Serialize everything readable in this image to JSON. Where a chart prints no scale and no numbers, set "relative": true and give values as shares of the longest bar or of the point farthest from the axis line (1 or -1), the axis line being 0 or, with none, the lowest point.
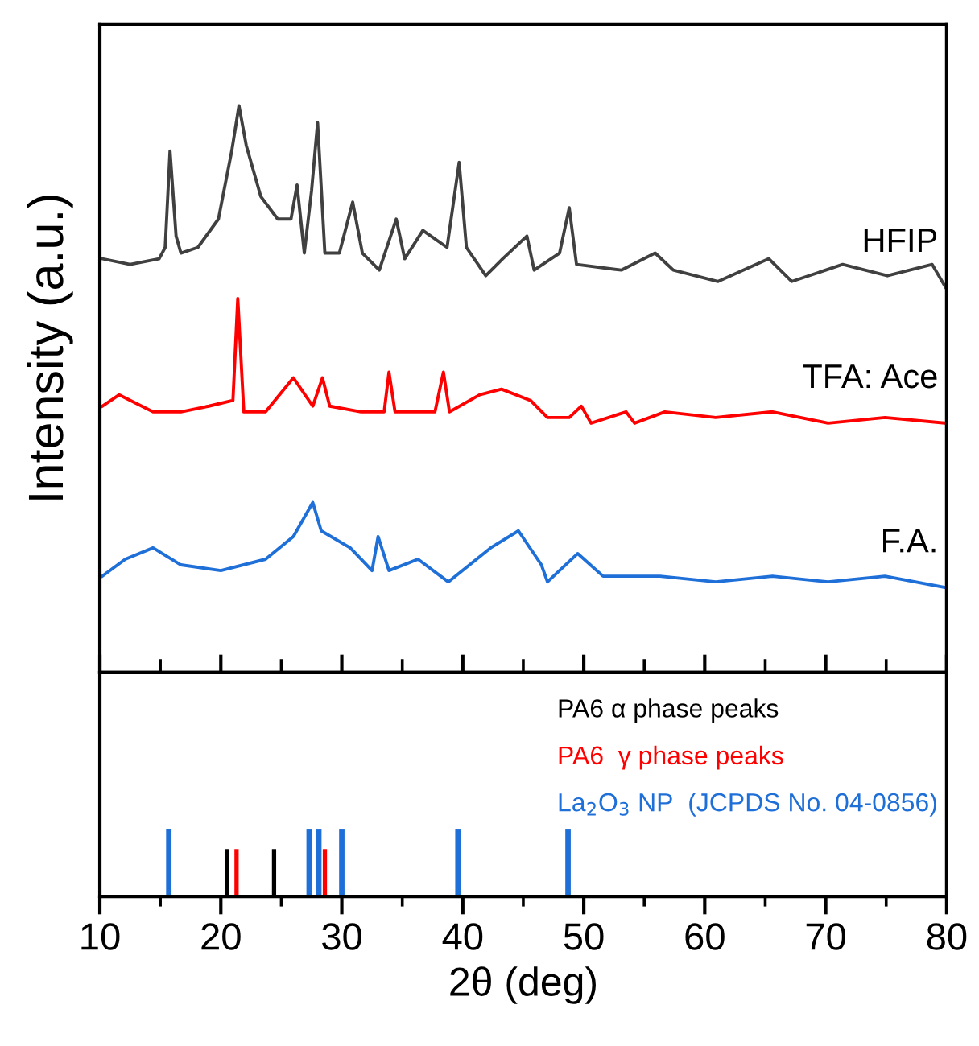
{
  "chart_data": [
    {
      "type": "line",
      "relative": true,
      "ylabel": "Intensity (a.u.)",
      "xlim": [
        10,
        80
      ],
      "xticks": [
        10,
        {
          "value": 15,
          "label": null
        },
        20,
        {
          "value": 25,
          "label": null
        },
        30,
        {
          "value": 35,
          "label": null
        },
        40,
        {
          "value": 45,
          "label": null
        },
        50,
        {
          "value": 55,
          "label": null
        },
        60,
        {
          "value": 65,
          "label": null
        },
        70,
        {
          "value": 75,
          "label": null
        },
        80
      ],
      "tick_labels": false,
      "series": [
        {
          "name": "HFIP",
          "color": "#404040",
          "x": [
            10.2,
            12.5,
            14.9,
            15.4,
            15.8,
            16.3,
            16.7,
            18.1,
            19.8,
            20.9,
            21.5,
            22.1,
            23.3,
            24.7,
            25.8,
            26.3,
            26.9,
            27.5,
            28.0,
            28.6,
            29.8,
            30.9,
            31.7,
            33.1,
            34.5,
            35.2,
            36.7,
            38.7,
            39.7,
            40.3,
            41.9,
            43.3,
            45.3,
            45.9,
            48.0,
            48.8,
            49.4,
            53.1,
            55.9,
            57.4,
            61.1,
            65.3,
            67.2,
            71.4,
            75.1,
            78.8,
            79.9
          ],
          "values": [
            0.73,
            0.72,
            0.73,
            0.75,
            0.92,
            0.77,
            0.74,
            0.75,
            0.8,
            0.92,
            1.0,
            0.93,
            0.84,
            0.8,
            0.8,
            0.86,
            0.74,
            0.85,
            0.97,
            0.74,
            0.74,
            0.83,
            0.74,
            0.71,
            0.8,
            0.73,
            0.78,
            0.75,
            0.9,
            0.75,
            0.7,
            0.73,
            0.77,
            0.71,
            0.74,
            0.82,
            0.72,
            0.71,
            0.74,
            0.71,
            0.69,
            0.73,
            0.69,
            0.72,
            0.7,
            0.72,
            0.68
          ]
        },
        {
          "name": "TFA: Ace",
          "color": "#ff0000",
          "x": [
            10.2,
            11.6,
            14.4,
            16.7,
            19.0,
            21.0,
            21.4,
            21.9,
            23.7,
            26.0,
            27.6,
            28.4,
            29.0,
            31.6,
            33.5,
            33.9,
            34.4,
            37.7,
            38.4,
            38.9,
            41.4,
            43.2,
            45.6,
            47.0,
            48.8,
            49.8,
            50.6,
            53.5,
            54.2,
            56.7,
            60.9,
            65.6,
            70.2,
            74.9,
            79.9
          ],
          "values": [
            0.47,
            0.49,
            0.46,
            0.46,
            0.47,
            0.48,
            0.66,
            0.46,
            0.46,
            0.52,
            0.47,
            0.52,
            0.47,
            0.46,
            0.46,
            0.53,
            0.46,
            0.46,
            0.53,
            0.46,
            0.49,
            0.5,
            0.48,
            0.45,
            0.45,
            0.47,
            0.44,
            0.46,
            0.44,
            0.46,
            0.45,
            0.46,
            0.44,
            0.45,
            0.44
          ]
        },
        {
          "name": "F.A.",
          "color": "#1f6fd8",
          "x": [
            10.2,
            12.1,
            14.4,
            16.7,
            20.0,
            23.7,
            26.0,
            27.6,
            28.3,
            30.7,
            32.5,
            33.0,
            33.9,
            36.3,
            38.8,
            42.3,
            44.6,
            46.5,
            47.0,
            49.5,
            51.6,
            56.3,
            60.9,
            65.6,
            70.2,
            74.9,
            79.9
          ],
          "values": [
            0.17,
            0.2,
            0.22,
            0.19,
            0.18,
            0.2,
            0.24,
            0.3,
            0.25,
            0.22,
            0.18,
            0.24,
            0.18,
            0.2,
            0.16,
            0.22,
            0.25,
            0.19,
            0.16,
            0.21,
            0.17,
            0.17,
            0.16,
            0.17,
            0.16,
            0.17,
            0.15
          ]
        }
      ]
    },
    {
      "type": "bar",
      "relative": true,
      "xlabel": "2θ (deg)",
      "xlim": [
        10,
        80
      ],
      "xticks": [
        10,
        {
          "value": 15,
          "label": null
        },
        20,
        {
          "value": 25,
          "label": null
        },
        30,
        {
          "value": 35,
          "label": null
        },
        40,
        {
          "value": 45,
          "label": null
        },
        50,
        {
          "value": 55,
          "label": null
        },
        60,
        {
          "value": 65,
          "label": null
        },
        70,
        {
          "value": 75,
          "label": null
        },
        80
      ],
      "tick_labels": "x",
      "series": [
        {
          "name": "PA6 α phase peaks",
          "color": "#000000",
          "x": [
            20.5,
            24.4
          ],
          "values": [
            0.7,
            0.7
          ]
        },
        {
          "name": "PA6  γ phase peaks",
          "color": "#ff0000",
          "x": [
            21.3,
            28.6
          ],
          "values": [
            0.7,
            0.7
          ]
        },
        {
          "name": "La$_{2}$O$_{3}$ NP  (JCPDS No. 04-0856)",
          "color": "#1f6fd8",
          "x": [
            15.7,
            27.3,
            28.1,
            30.0,
            39.6,
            48.7
          ],
          "values": [
            1,
            1,
            1,
            1,
            1,
            1
          ]
        }
      ]
    }
  ]
}
